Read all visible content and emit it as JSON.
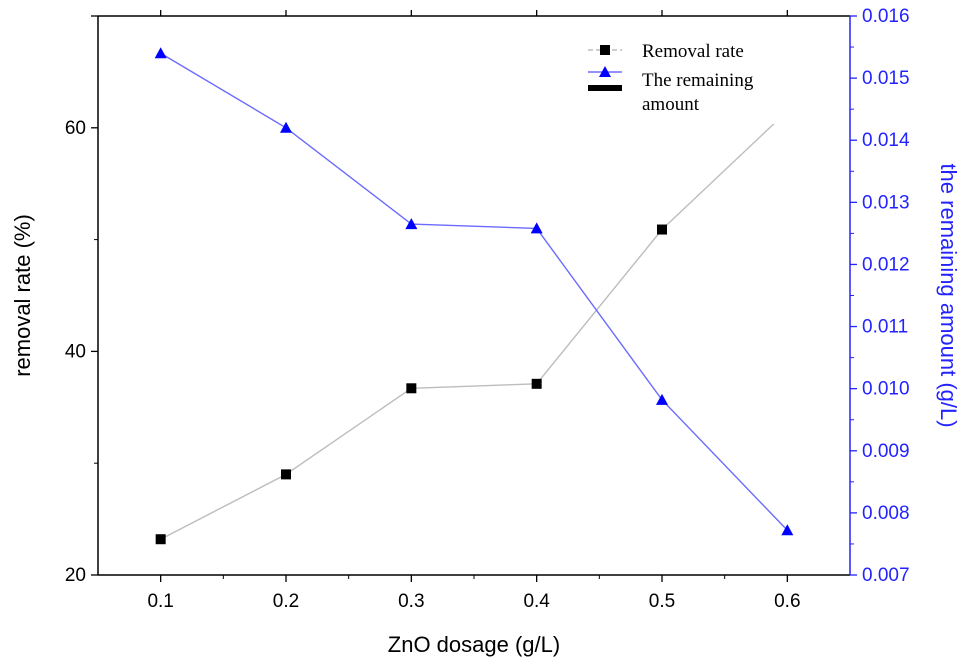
{
  "chart_data": {
    "type": "line",
    "x": [
      0.1,
      0.2,
      0.3,
      0.4,
      0.5,
      0.6
    ],
    "x_tick_labels": [
      "0.1",
      "0.2",
      "0.3",
      "0.4",
      "0.5",
      "0.6"
    ],
    "xlabel": "ZnO dosage (g/L)",
    "xlim": [
      0.05,
      0.65
    ],
    "y_left": {
      "label": "removal rate (%)",
      "lim": [
        20,
        70
      ],
      "ticks": [
        20,
        40,
        60
      ],
      "tick_labels": [
        "20",
        "40",
        "60"
      ]
    },
    "y_right": {
      "label": "the remaining amount (g/L)",
      "lim": [
        0.007,
        0.016
      ],
      "ticks": [
        0.007,
        0.008,
        0.009,
        0.01,
        0.011,
        0.012,
        0.013,
        0.014,
        0.015,
        0.016
      ],
      "tick_labels": [
        "0.007",
        "0.008",
        "0.009",
        "0.010",
        "0.011",
        "0.012",
        "0.013",
        "0.014",
        "0.015",
        "0.016"
      ]
    },
    "series": [
      {
        "name": "Removal rate",
        "axis": "left",
        "marker": "square",
        "color": "#000000",
        "line_color": "#bdbdbd",
        "values": [
          23.2,
          29.0,
          36.7,
          37.1,
          50.9,
          61.5
        ]
      },
      {
        "name": "The remaining amount",
        "axis": "right",
        "marker": "triangle",
        "color": "#0000ff",
        "line_color": "#6b6bff",
        "values": [
          0.0154,
          0.0142,
          0.01265,
          0.01258,
          0.00982,
          0.00772
        ]
      }
    ],
    "legend": {
      "position": "top-right",
      "entries": [
        {
          "label_lines": [
            "Removal rate"
          ]
        },
        {
          "label_lines": [
            "The remaining",
            "amount"
          ]
        }
      ]
    },
    "left_axis_color": "#000000",
    "right_axis_color": "#2323ff",
    "grid": false
  }
}
